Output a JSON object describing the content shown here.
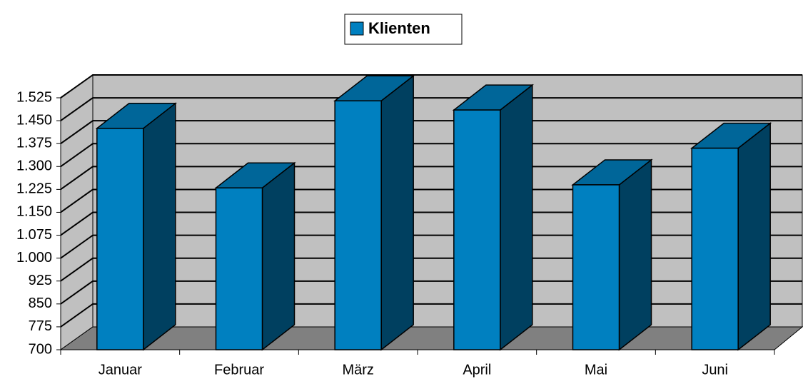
{
  "chart_data": {
    "type": "bar3d",
    "legend": "Klienten",
    "categories": [
      "Januar",
      "Februar",
      "März",
      "April",
      "Mai",
      "Juni"
    ],
    "series": [
      {
        "name": "Klienten",
        "color": "#0080c0",
        "values": [
          1425,
          1230,
          1515,
          1485,
          1240,
          1360
        ]
      }
    ],
    "ylim": [
      700,
      1525
    ],
    "yticks": [
      700,
      775,
      850,
      925,
      {
        "value": 1000,
        "label": "1.000"
      },
      {
        "value": 1075,
        "label": "1.075"
      },
      {
        "value": 1150,
        "label": "1.150"
      },
      {
        "value": 1225,
        "label": "1.225"
      },
      {
        "value": 1300,
        "label": "1.300"
      },
      {
        "value": 1375,
        "label": "1.375"
      },
      {
        "value": 1450,
        "label": "1.450"
      },
      {
        "value": 1525,
        "label": "1.525"
      }
    ],
    "grid": true
  }
}
